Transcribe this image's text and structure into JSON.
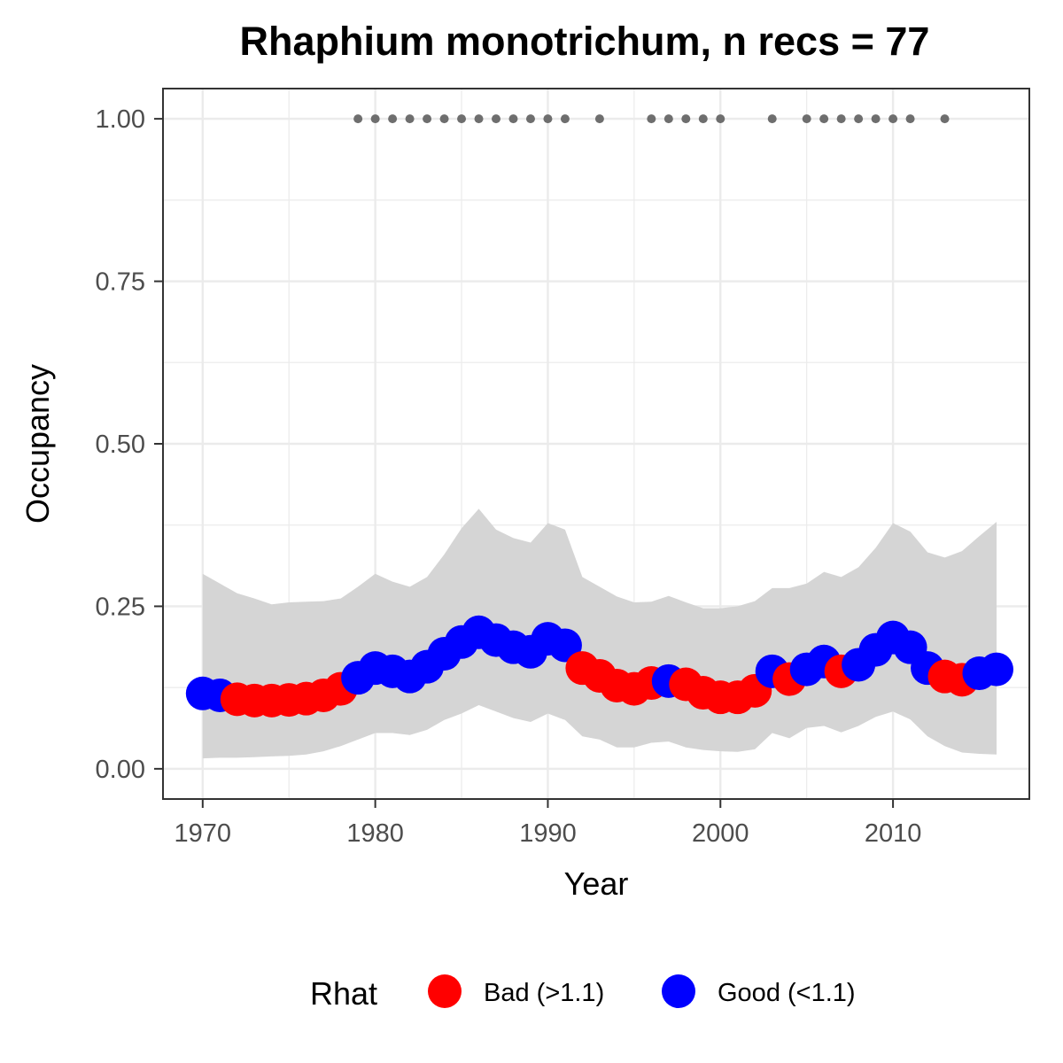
{
  "chart_data": {
    "type": "line",
    "title": "Rhaphium monotrichum, n recs = 77",
    "xlabel": "Year",
    "ylabel": "Occupancy",
    "xlim": [
      1967.7,
      2017.9
    ],
    "ylim": [
      -0.0465,
      1.0465
    ],
    "x_ticks": [
      1970,
      1980,
      1990,
      2000,
      2010
    ],
    "x_tick_labels": [
      "1970",
      "1980",
      "1990",
      "2000",
      "2010"
    ],
    "y_ticks": [
      0,
      0.25,
      0.5,
      0.75,
      1
    ],
    "y_tick_labels": [
      "0.00",
      "0.25",
      "0.50",
      "0.75",
      "1.00"
    ],
    "grid": true,
    "legend": {
      "title": "Rhat",
      "position": "bottom",
      "entries": [
        {
          "key": "bad",
          "label": "Bad (>1.1)",
          "color": "#ff0000"
        },
        {
          "key": "good",
          "label": "Good (<1.1)",
          "color": "#0000ff"
        }
      ]
    },
    "colors": {
      "bad": "#ff0000",
      "good": "#0000ff",
      "ribbon": "#d5d5d5",
      "records": "#6e6e6e",
      "panel_border": "#333333",
      "grid": "#ebebeb"
    },
    "series": [
      {
        "name": "Occupancy",
        "points": [
          {
            "x": 1970,
            "y": 0.116,
            "rhat": "good"
          },
          {
            "x": 1971,
            "y": 0.113,
            "rhat": "good"
          },
          {
            "x": 1972,
            "y": 0.107,
            "rhat": "bad"
          },
          {
            "x": 1973,
            "y": 0.105,
            "rhat": "bad"
          },
          {
            "x": 1974,
            "y": 0.105,
            "rhat": "bad"
          },
          {
            "x": 1975,
            "y": 0.106,
            "rhat": "bad"
          },
          {
            "x": 1976,
            "y": 0.108,
            "rhat": "bad"
          },
          {
            "x": 1977,
            "y": 0.113,
            "rhat": "bad"
          },
          {
            "x": 1978,
            "y": 0.123,
            "rhat": "bad"
          },
          {
            "x": 1979,
            "y": 0.14,
            "rhat": "good"
          },
          {
            "x": 1980,
            "y": 0.155,
            "rhat": "good"
          },
          {
            "x": 1981,
            "y": 0.15,
            "rhat": "good"
          },
          {
            "x": 1982,
            "y": 0.142,
            "rhat": "good"
          },
          {
            "x": 1983,
            "y": 0.157,
            "rhat": "good"
          },
          {
            "x": 1984,
            "y": 0.177,
            "rhat": "good"
          },
          {
            "x": 1985,
            "y": 0.195,
            "rhat": "good"
          },
          {
            "x": 1986,
            "y": 0.21,
            "rhat": "good"
          },
          {
            "x": 1987,
            "y": 0.198,
            "rhat": "good"
          },
          {
            "x": 1988,
            "y": 0.187,
            "rhat": "good"
          },
          {
            "x": 1989,
            "y": 0.18,
            "rhat": "good"
          },
          {
            "x": 1990,
            "y": 0.2,
            "rhat": "good"
          },
          {
            "x": 1991,
            "y": 0.19,
            "rhat": "good"
          },
          {
            "x": 1992,
            "y": 0.155,
            "rhat": "bad"
          },
          {
            "x": 1993,
            "y": 0.143,
            "rhat": "bad"
          },
          {
            "x": 1994,
            "y": 0.128,
            "rhat": "bad"
          },
          {
            "x": 1995,
            "y": 0.123,
            "rhat": "bad"
          },
          {
            "x": 1996,
            "y": 0.132,
            "rhat": "bad"
          },
          {
            "x": 1997,
            "y": 0.135,
            "rhat": "good"
          },
          {
            "x": 1998,
            "y": 0.13,
            "rhat": "bad"
          },
          {
            "x": 1999,
            "y": 0.117,
            "rhat": "bad"
          },
          {
            "x": 2000,
            "y": 0.11,
            "rhat": "bad"
          },
          {
            "x": 2001,
            "y": 0.11,
            "rhat": "bad"
          },
          {
            "x": 2002,
            "y": 0.12,
            "rhat": "bad"
          },
          {
            "x": 2003,
            "y": 0.15,
            "rhat": "good"
          },
          {
            "x": 2004,
            "y": 0.138,
            "rhat": "bad"
          },
          {
            "x": 2005,
            "y": 0.153,
            "rhat": "good"
          },
          {
            "x": 2006,
            "y": 0.165,
            "rhat": "good"
          },
          {
            "x": 2007,
            "y": 0.15,
            "rhat": "bad"
          },
          {
            "x": 2008,
            "y": 0.16,
            "rhat": "good"
          },
          {
            "x": 2009,
            "y": 0.183,
            "rhat": "good"
          },
          {
            "x": 2010,
            "y": 0.202,
            "rhat": "good"
          },
          {
            "x": 2011,
            "y": 0.187,
            "rhat": "good"
          },
          {
            "x": 2012,
            "y": 0.155,
            "rhat": "good"
          },
          {
            "x": 2013,
            "y": 0.142,
            "rhat": "bad"
          },
          {
            "x": 2014,
            "y": 0.137,
            "rhat": "bad"
          },
          {
            "x": 2015,
            "y": 0.147,
            "rhat": "good"
          },
          {
            "x": 2016,
            "y": 0.153,
            "rhat": "good"
          }
        ]
      }
    ],
    "ribbon": {
      "x": [
        1970,
        1971,
        1972,
        1973,
        1974,
        1975,
        1976,
        1977,
        1978,
        1979,
        1980,
        1981,
        1982,
        1983,
        1984,
        1985,
        1986,
        1987,
        1988,
        1989,
        1990,
        1991,
        1992,
        1993,
        1994,
        1995,
        1996,
        1997,
        1998,
        1999,
        2000,
        2001,
        2002,
        2003,
        2004,
        2005,
        2006,
        2007,
        2008,
        2009,
        2010,
        2011,
        2012,
        2013,
        2014,
        2015,
        2016
      ],
      "lower": [
        0.016,
        0.017,
        0.017,
        0.018,
        0.019,
        0.02,
        0.022,
        0.027,
        0.035,
        0.045,
        0.055,
        0.055,
        0.052,
        0.06,
        0.075,
        0.085,
        0.098,
        0.088,
        0.078,
        0.072,
        0.085,
        0.075,
        0.05,
        0.045,
        0.033,
        0.033,
        0.04,
        0.042,
        0.033,
        0.029,
        0.027,
        0.026,
        0.03,
        0.055,
        0.047,
        0.063,
        0.066,
        0.056,
        0.066,
        0.08,
        0.088,
        0.076,
        0.05,
        0.035,
        0.025,
        0.023,
        0.022
      ],
      "upper": [
        0.3,
        0.285,
        0.27,
        0.262,
        0.253,
        0.256,
        0.257,
        0.258,
        0.262,
        0.28,
        0.3,
        0.288,
        0.28,
        0.295,
        0.33,
        0.37,
        0.4,
        0.368,
        0.355,
        0.348,
        0.378,
        0.368,
        0.295,
        0.28,
        0.265,
        0.256,
        0.257,
        0.266,
        0.256,
        0.247,
        0.247,
        0.25,
        0.258,
        0.278,
        0.278,
        0.285,
        0.303,
        0.295,
        0.31,
        0.34,
        0.378,
        0.365,
        0.333,
        0.325,
        0.335,
        0.358,
        0.38
      ]
    },
    "records": {
      "y": 1.0,
      "x": [
        1979,
        1980,
        1981,
        1982,
        1983,
        1984,
        1985,
        1986,
        1987,
        1988,
        1989,
        1990,
        1991,
        1993,
        1996,
        1997,
        1998,
        1999,
        2000,
        2003,
        2005,
        2006,
        2007,
        2008,
        2009,
        2010,
        2011,
        2013
      ]
    }
  }
}
